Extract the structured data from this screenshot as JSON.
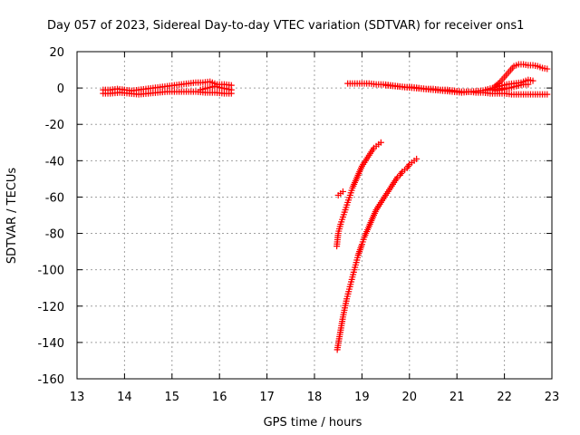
{
  "chart_data": {
    "type": "scatter",
    "title": "Day 057 of 2023, Sidereal Day-to-day VTEC variation (SDTVAR) for receiver ons1",
    "xlabel": "GPS time / hours",
    "ylabel": "SDTVAR / TECUs",
    "xlim": [
      13,
      23
    ],
    "ylim": [
      -160,
      20
    ],
    "xticks": [
      13,
      14,
      15,
      16,
      17,
      18,
      19,
      20,
      21,
      22,
      23
    ],
    "yticks": [
      20,
      0,
      -20,
      -40,
      -60,
      -80,
      -100,
      -120,
      -140,
      -160
    ],
    "grid": true,
    "marker": "+",
    "color": "#ff0000",
    "series": [
      {
        "x": [
          13.55,
          13.7,
          13.85,
          14.0,
          14.15,
          14.3,
          14.45,
          14.6,
          14.75,
          14.9,
          15.05,
          15.2,
          15.35,
          15.5,
          15.65,
          15.8,
          15.95,
          16.1,
          16.25
        ],
        "y": [
          -1,
          -1,
          -0.5,
          -1,
          -1.5,
          -1,
          -0.5,
          0,
          0.5,
          1,
          1.5,
          2,
          2.5,
          3,
          3,
          3.5,
          2,
          2,
          1.5
        ]
      },
      {
        "x": [
          13.55,
          13.7,
          13.9,
          14.1,
          14.3,
          14.5,
          14.7,
          14.9,
          15.1,
          15.3,
          15.5,
          15.7,
          15.9,
          16.1,
          16.25
        ],
        "y": [
          -3,
          -3,
          -2.5,
          -3,
          -3.5,
          -3,
          -2.5,
          -2,
          -2,
          -2,
          -2,
          -2.5,
          -2.5,
          -3,
          -3
        ]
      },
      {
        "x": [
          15.6,
          15.75,
          15.9,
          16.05,
          16.25
        ],
        "y": [
          -1,
          0,
          1,
          0,
          -1
        ]
      },
      {
        "x": [
          18.5,
          18.55,
          18.6
        ],
        "y": [
          -59,
          -58,
          -57
        ]
      },
      {
        "x": [
          18.47,
          18.5,
          18.55,
          18.6,
          18.65,
          18.7,
          18.75,
          18.8,
          18.85,
          18.9,
          18.95,
          19.0,
          19.05,
          19.1,
          19.15,
          19.2,
          19.25,
          19.3,
          19.35,
          19.4
        ],
        "y": [
          -87,
          -80,
          -75,
          -71,
          -67,
          -63,
          -59,
          -55,
          -52,
          -49,
          -46,
          -43,
          -41,
          -39,
          -37,
          -35,
          -33,
          -32,
          -31,
          -30
        ]
      },
      {
        "x": [
          18.48,
          18.52,
          18.56,
          18.6,
          18.64,
          18.68,
          18.72,
          18.76,
          18.8,
          18.84,
          18.88,
          18.92,
          18.96,
          19.0,
          19.05,
          19.1,
          19.15,
          19.2,
          19.25,
          19.3,
          19.35,
          19.4,
          19.45,
          19.5,
          19.55,
          19.6,
          19.65,
          19.7,
          19.75,
          19.8,
          19.85,
          19.9,
          19.95,
          20.0,
          20.05,
          20.1,
          20.15
        ],
        "y": [
          -144,
          -138,
          -132,
          -126,
          -121,
          -116,
          -112,
          -108,
          -104,
          -100,
          -96,
          -92,
          -89,
          -86,
          -82,
          -79,
          -76,
          -73,
          -70,
          -67,
          -65,
          -63,
          -61,
          -59,
          -57,
          -55,
          -53,
          -51,
          -49,
          -48,
          -46,
          -45,
          -44,
          -42,
          -41,
          -40,
          -39
        ]
      },
      {
        "x": [
          18.7,
          18.85,
          19.0,
          19.15,
          19.3,
          19.45,
          19.6,
          19.75,
          19.9,
          20.05,
          20.2,
          20.35,
          20.5,
          20.65,
          20.8,
          20.95,
          21.1,
          21.25,
          21.4,
          21.55,
          21.7,
          21.85,
          22.0,
          22.15,
          22.3,
          22.45,
          22.6,
          22.75,
          22.9
        ],
        "y": [
          2.5,
          2.5,
          2.5,
          2.5,
          2,
          2,
          1.5,
          1,
          0.5,
          0.5,
          0,
          -0.5,
          -0.5,
          -1,
          -1,
          -1.5,
          -2,
          -2,
          -2.5,
          -2.5,
          -3,
          -3,
          -3,
          -3.5,
          -3.5,
          -3.5,
          -3.5,
          -3.5,
          -3.5
        ]
      },
      {
        "x": [
          19.5,
          19.7,
          19.9,
          20.1,
          20.3,
          20.5,
          20.7,
          20.9,
          21.1,
          21.3,
          21.5,
          21.7,
          21.85,
          22.0
        ],
        "y": [
          1.5,
          1,
          0.5,
          0,
          -0.5,
          -1,
          -1.5,
          -2,
          -2.5,
          -2,
          -1.5,
          -1,
          -0.5,
          0
        ]
      },
      {
        "x": [
          21.8,
          21.9,
          22.0,
          22.1,
          22.2,
          22.3,
          22.4,
          22.5,
          22.6,
          22.7,
          22.8,
          22.9
        ],
        "y": [
          1,
          3,
          6,
          9,
          12,
          13,
          13,
          12.5,
          12.5,
          12,
          11,
          10.5
        ]
      },
      {
        "x": [
          21.6,
          21.75,
          21.9,
          22.05,
          22.2,
          22.35,
          22.5,
          22.6
        ],
        "y": [
          -1,
          0,
          1,
          2,
          2.5,
          3,
          4.5,
          4
        ]
      },
      {
        "x": [
          21.8,
          21.95,
          22.1,
          22.25,
          22.4,
          22.5
        ],
        "y": [
          -1.5,
          -1,
          0,
          1,
          2,
          2
        ]
      }
    ]
  }
}
